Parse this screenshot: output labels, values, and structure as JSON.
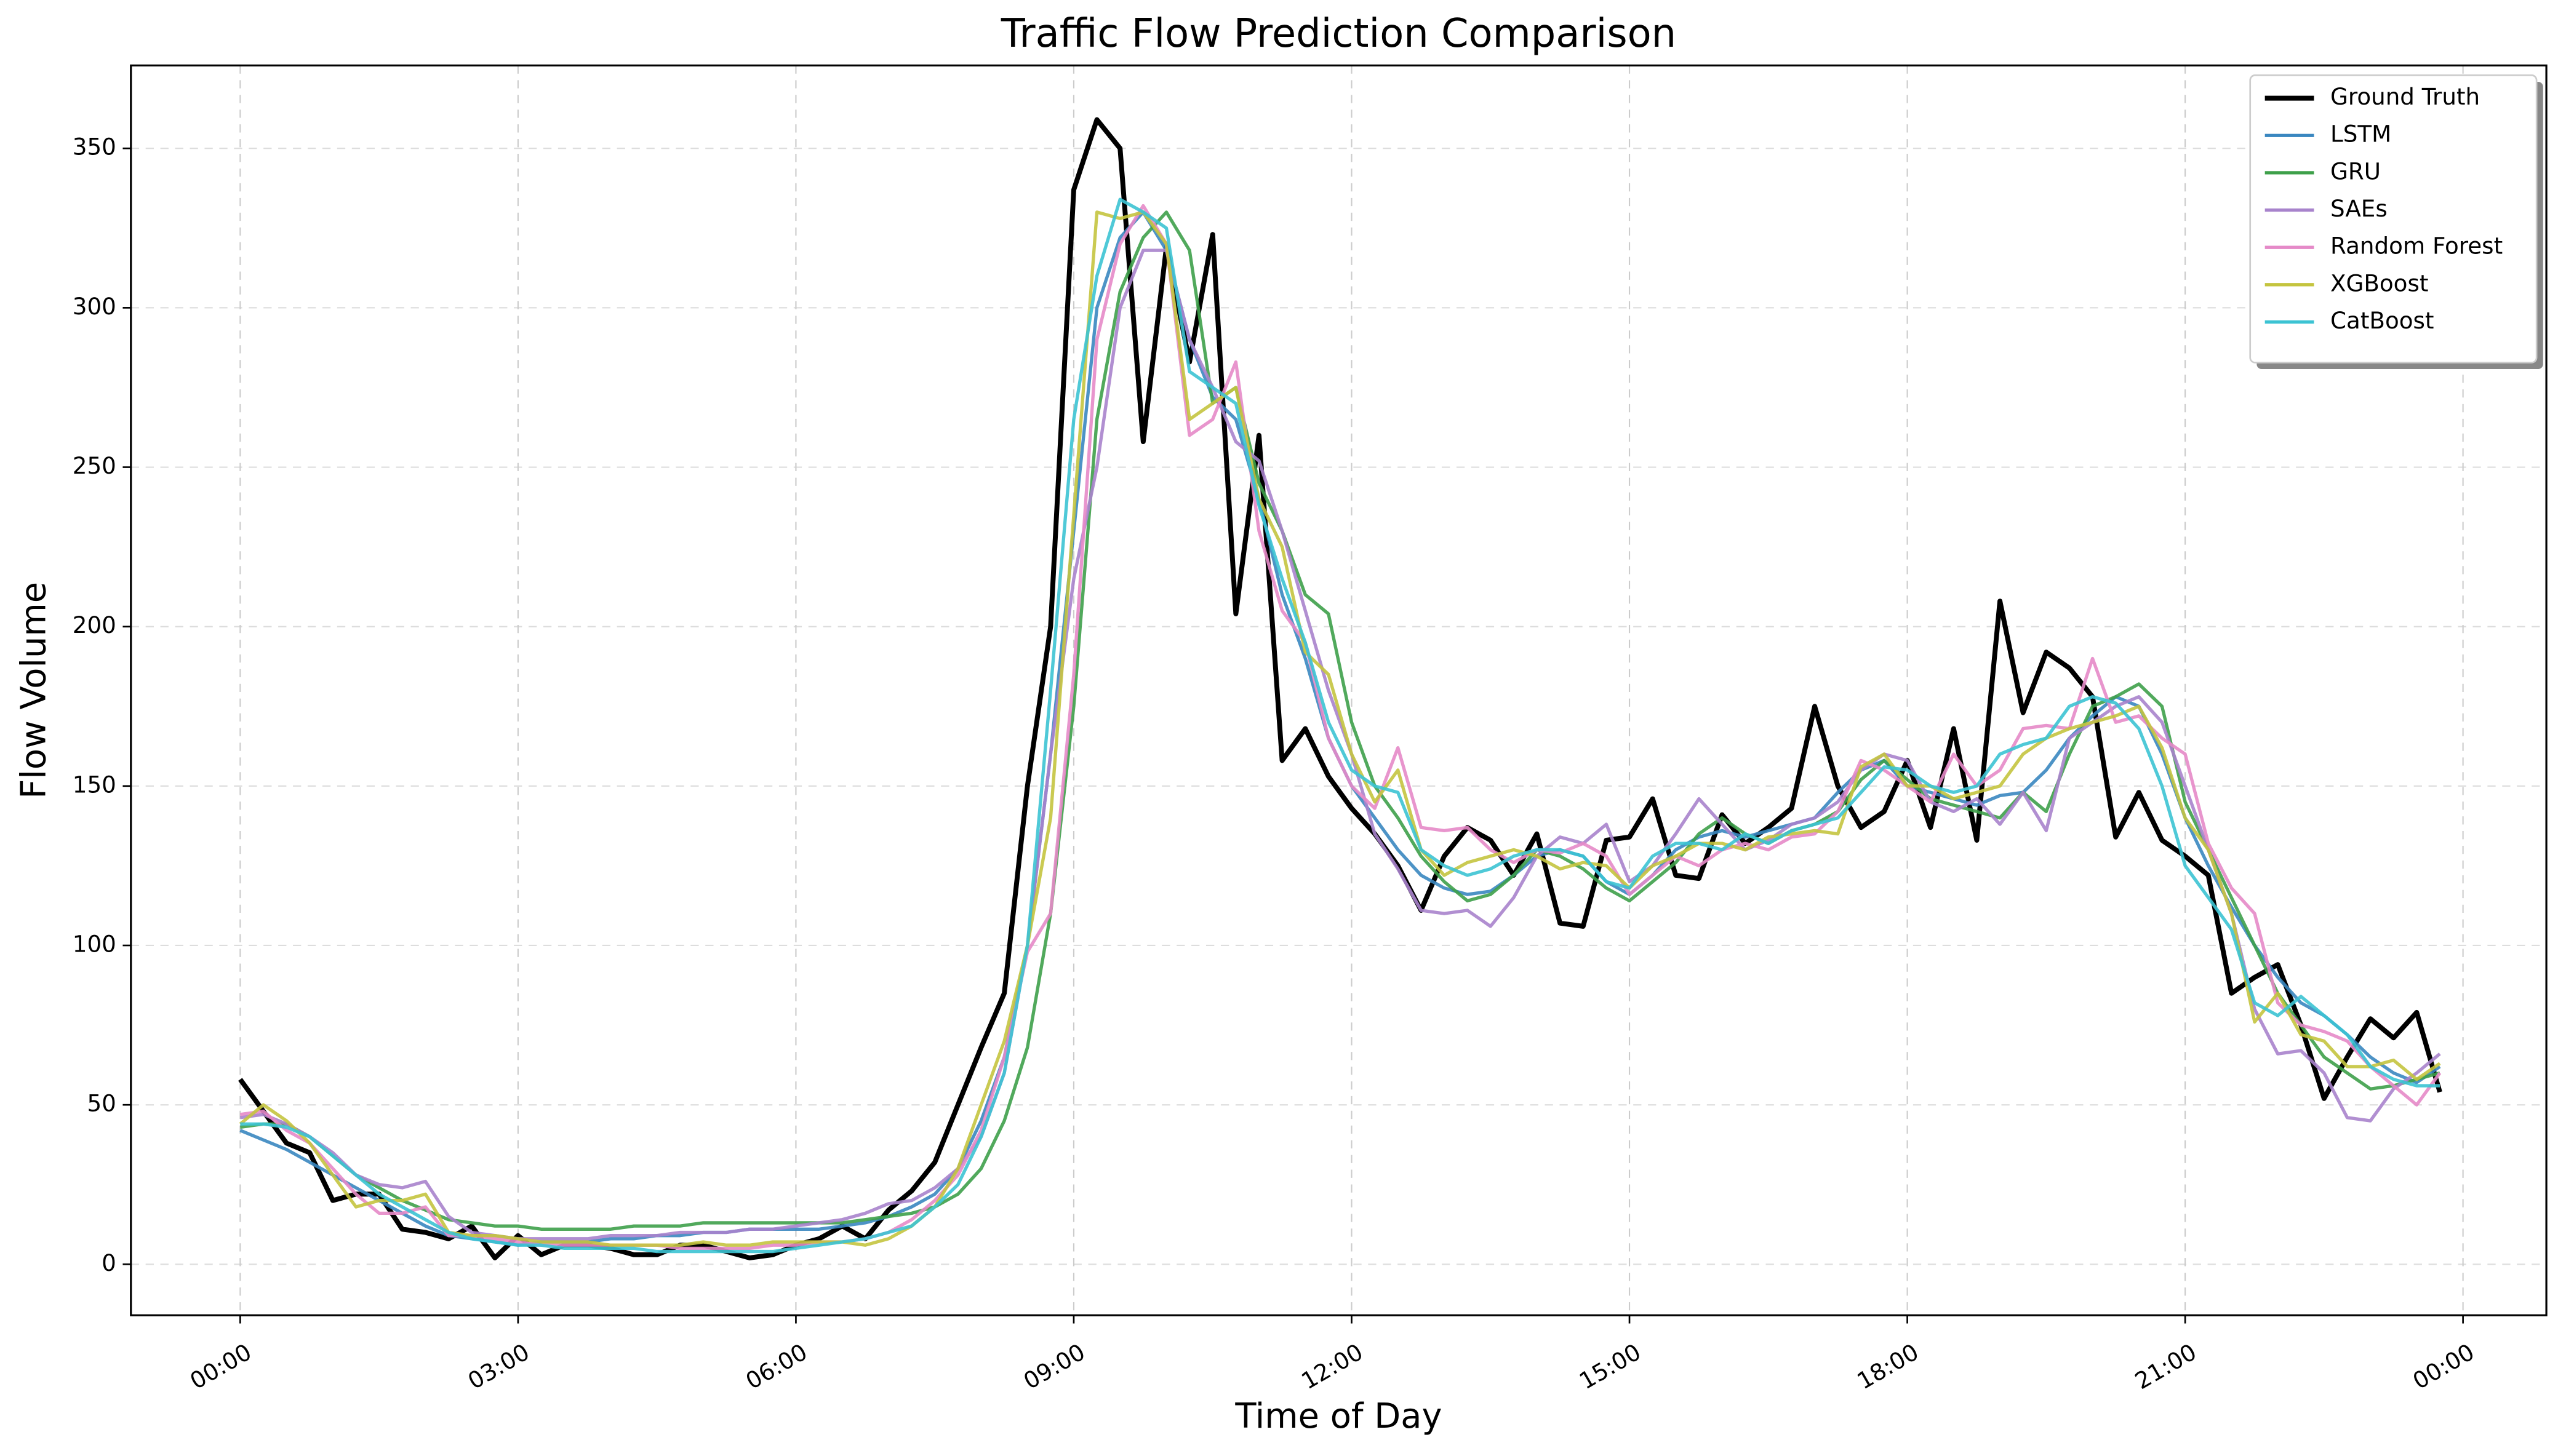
{
  "chart_data": {
    "type": "line",
    "title": "Traffic Flow Prediction Comparison",
    "x_label": "Time of Day",
    "y_label": "Flow Volume",
    "x": [
      0,
      0.25,
      0.5,
      0.75,
      1,
      1.25,
      1.5,
      1.75,
      2,
      2.25,
      2.5,
      2.75,
      3,
      3.25,
      3.5,
      3.75,
      4,
      4.25,
      4.5,
      4.75,
      5,
      5.25,
      5.5,
      5.75,
      6,
      6.25,
      6.5,
      6.75,
      7,
      7.25,
      7.5,
      7.75,
      8,
      8.25,
      8.5,
      8.75,
      9,
      9.25,
      9.5,
      9.75,
      10,
      10.25,
      10.5,
      10.75,
      11,
      11.25,
      11.5,
      11.75,
      12,
      12.25,
      12.5,
      12.75,
      13,
      13.25,
      13.5,
      13.75,
      14,
      14.25,
      14.5,
      14.75,
      15,
      15.25,
      15.5,
      15.75,
      16,
      16.25,
      16.5,
      16.75,
      17,
      17.25,
      17.5,
      17.75,
      18,
      18.25,
      18.5,
      18.75,
      19,
      19.25,
      19.5,
      19.75,
      20,
      20.25,
      20.5,
      20.75,
      21,
      21.25,
      21.5,
      21.75,
      22,
      22.25,
      22.5,
      22.75,
      23,
      23.25,
      23.5,
      23.75
    ],
    "xlim": [
      -1.18,
      24.9
    ],
    "ylim": [
      -16,
      376
    ],
    "xticks": [
      {
        "value": 0,
        "label": "00:00"
      },
      {
        "value": 3,
        "label": "03:00"
      },
      {
        "value": 6,
        "label": "06:00"
      },
      {
        "value": 9,
        "label": "09:00"
      },
      {
        "value": 12,
        "label": "12:00"
      },
      {
        "value": 15,
        "label": "15:00"
      },
      {
        "value": 18,
        "label": "18:00"
      },
      {
        "value": 21,
        "label": "21:00"
      },
      {
        "value": 24,
        "label": "00:00"
      }
    ],
    "yticks": [
      0,
      50,
      100,
      150,
      200,
      250,
      300,
      350
    ],
    "grid": true,
    "legend": "upper right",
    "series": [
      {
        "name": "Ground Truth",
        "color": "#000000",
        "values": [
          58,
          48,
          38,
          35,
          20,
          22,
          22,
          11,
          10,
          8,
          12,
          2,
          9,
          3,
          6,
          6,
          5,
          3,
          3,
          6,
          6,
          4,
          2,
          3,
          6,
          8,
          12,
          8,
          17,
          23,
          32,
          50,
          68,
          85,
          150,
          200,
          337,
          359,
          350,
          258,
          319,
          283,
          323,
          204,
          260,
          158,
          168,
          153,
          143,
          135,
          125,
          111,
          128,
          137,
          133,
          122,
          135,
          107,
          106,
          133,
          134,
          146,
          122,
          121,
          141,
          132,
          137,
          143,
          175,
          150,
          137,
          142,
          158,
          137,
          168,
          133,
          208,
          173,
          192,
          187,
          178,
          134,
          148,
          133,
          128,
          122,
          85,
          90,
          94,
          75,
          52,
          65,
          77,
          71,
          79,
          54
        ]
      },
      {
        "name": "LSTM",
        "color": "#3a87c0",
        "values": [
          42,
          39,
          36,
          32,
          28,
          24,
          20,
          16,
          12,
          9,
          8,
          7,
          6,
          7,
          7,
          7,
          8,
          8,
          9,
          9,
          10,
          10,
          11,
          11,
          11,
          11,
          12,
          13,
          15,
          18,
          22,
          30,
          45,
          65,
          100,
          160,
          230,
          300,
          322,
          330,
          318,
          290,
          272,
          265,
          240,
          210,
          190,
          165,
          150,
          140,
          130,
          122,
          118,
          116,
          117,
          122,
          128,
          130,
          128,
          120,
          116,
          122,
          130,
          134,
          136,
          134,
          136,
          138,
          140,
          148,
          155,
          158,
          150,
          148,
          146,
          144,
          147,
          148,
          155,
          165,
          172,
          178,
          175,
          160,
          140,
          125,
          112,
          100,
          90,
          82,
          78,
          72,
          65,
          60,
          57,
          62
        ]
      },
      {
        "name": "GRU",
        "color": "#3ea04a",
        "values": [
          43,
          44,
          44,
          40,
          34,
          28,
          24,
          20,
          17,
          14,
          13,
          12,
          12,
          11,
          11,
          11,
          11,
          12,
          12,
          12,
          13,
          13,
          13,
          13,
          13,
          13,
          13,
          14,
          15,
          16,
          18,
          22,
          30,
          45,
          68,
          110,
          175,
          265,
          305,
          322,
          330,
          318,
          270,
          275,
          245,
          230,
          210,
          204,
          170,
          150,
          140,
          128,
          120,
          114,
          116,
          122,
          130,
          128,
          124,
          118,
          114,
          120,
          126,
          135,
          140,
          135,
          132,
          136,
          138,
          142,
          152,
          158,
          152,
          146,
          144,
          142,
          140,
          148,
          142,
          160,
          175,
          178,
          182,
          175,
          145,
          130,
          115,
          100,
          85,
          75,
          65,
          60,
          55,
          56,
          58,
          60
        ]
      },
      {
        "name": "SAEs",
        "color": "#a883cc",
        "values": [
          46,
          47,
          44,
          40,
          35,
          28,
          25,
          24,
          26,
          15,
          10,
          9,
          8,
          8,
          8,
          8,
          9,
          9,
          9,
          10,
          10,
          10,
          11,
          11,
          12,
          13,
          14,
          16,
          19,
          20,
          24,
          30,
          40,
          60,
          100,
          160,
          215,
          250,
          300,
          318,
          318,
          290,
          275,
          258,
          252,
          230,
          205,
          180,
          160,
          135,
          124,
          111,
          110,
          111,
          106,
          115,
          128,
          134,
          132,
          138,
          120,
          125,
          135,
          146,
          138,
          130,
          133,
          138,
          140,
          145,
          155,
          160,
          158,
          145,
          142,
          146,
          138,
          148,
          136,
          165,
          170,
          175,
          178,
          170,
          150,
          130,
          110,
          80,
          66,
          67,
          60,
          46,
          45,
          55,
          60,
          66
        ]
      },
      {
        "name": "Random Forest",
        "color": "#e58ac8",
        "values": [
          47,
          48,
          42,
          38,
          30,
          22,
          16,
          16,
          18,
          9,
          9,
          8,
          7,
          6,
          6,
          6,
          6,
          6,
          6,
          5,
          5,
          5,
          5,
          6,
          6,
          7,
          7,
          8,
          10,
          14,
          20,
          28,
          42,
          65,
          98,
          110,
          185,
          290,
          320,
          332,
          320,
          260,
          265,
          283,
          230,
          205,
          195,
          165,
          150,
          143,
          162,
          137,
          136,
          137,
          130,
          126,
          130,
          129,
          132,
          128,
          116,
          122,
          128,
          125,
          130,
          132,
          130,
          134,
          135,
          142,
          158,
          155,
          150,
          145,
          160,
          150,
          155,
          168,
          169,
          168,
          190,
          170,
          172,
          165,
          160,
          132,
          118,
          110,
          82,
          75,
          73,
          70,
          62,
          56,
          50,
          60
        ]
      },
      {
        "name": "XGBoost",
        "color": "#c4c43f",
        "values": [
          44,
          50,
          45,
          38,
          28,
          18,
          20,
          20,
          22,
          10,
          9,
          9,
          8,
          7,
          7,
          7,
          6,
          6,
          6,
          6,
          7,
          6,
          6,
          7,
          7,
          7,
          7,
          6,
          8,
          12,
          18,
          30,
          50,
          70,
          100,
          140,
          235,
          330,
          328,
          330,
          320,
          265,
          270,
          275,
          240,
          225,
          192,
          185,
          160,
          145,
          155,
          130,
          122,
          126,
          128,
          130,
          128,
          124,
          126,
          125,
          118,
          125,
          128,
          132,
          132,
          130,
          134,
          135,
          136,
          135,
          156,
          160,
          150,
          150,
          146,
          148,
          150,
          160,
          165,
          168,
          170,
          172,
          175,
          162,
          140,
          130,
          110,
          76,
          85,
          72,
          70,
          62,
          62,
          64,
          58,
          63
        ]
      },
      {
        "name": "CatBoost",
        "color": "#3cc3d3",
        "values": [
          44,
          44,
          43,
          40,
          34,
          28,
          22,
          18,
          14,
          10,
          8,
          7,
          6,
          6,
          5,
          5,
          5,
          5,
          4,
          4,
          4,
          4,
          4,
          4,
          5,
          6,
          7,
          8,
          10,
          12,
          18,
          25,
          40,
          60,
          100,
          180,
          265,
          310,
          334,
          330,
          325,
          280,
          275,
          270,
          238,
          215,
          195,
          170,
          155,
          150,
          148,
          130,
          125,
          122,
          124,
          128,
          130,
          130,
          128,
          120,
          118,
          128,
          132,
          132,
          130,
          135,
          132,
          136,
          138,
          140,
          148,
          156,
          155,
          150,
          148,
          150,
          160,
          163,
          165,
          175,
          178,
          176,
          168,
          150,
          125,
          115,
          105,
          82,
          78,
          84,
          78,
          72,
          62,
          58,
          56,
          56
        ]
      }
    ]
  }
}
